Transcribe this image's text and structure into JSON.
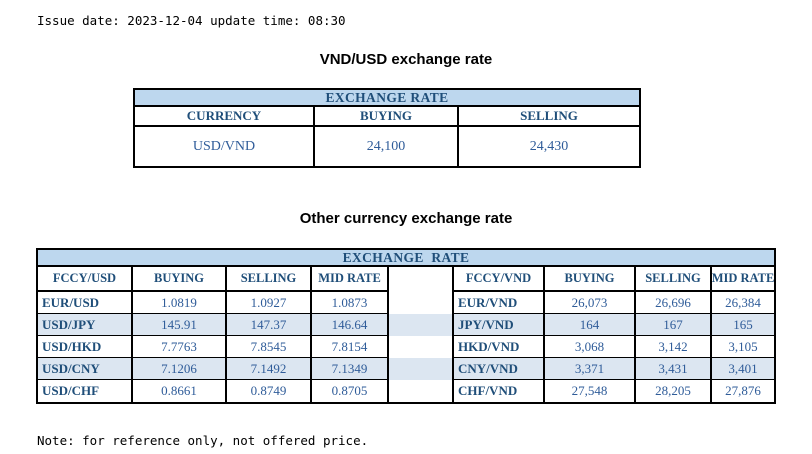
{
  "meta": {
    "issue_line": "Issue date: 2023-12-04 update time: 08:30",
    "note_line": "Note: for reference only, not offered price."
  },
  "colors": {
    "band_bg": "#BDD7EE",
    "stripe_bg": "#DCE6F1",
    "header_text": "#1F4E79",
    "number_text": "#2F5C99",
    "border": "#000000"
  },
  "usd_table": {
    "title": "VND/USD exchange rate",
    "band": "EXCHANGE RATE",
    "headers": [
      "CURRENCY",
      "BUYING",
      "SELLING"
    ],
    "rows": [
      [
        "USD/VND",
        "24,100",
        "24,430"
      ]
    ]
  },
  "other_table": {
    "title": "Other currency exchange rate",
    "band": "EXCHANGE  RATE",
    "left": {
      "headers": [
        "FCCY/USD",
        "BUYING",
        "SELLING",
        "MID RATE"
      ],
      "rows": [
        [
          "EUR/USD",
          "1.0819",
          "1.0927",
          "1.0873"
        ],
        [
          "USD/JPY",
          "145.91",
          "147.37",
          "146.64"
        ],
        [
          "USD/HKD",
          "7.7763",
          "7.8545",
          "7.8154"
        ],
        [
          "USD/CNY",
          "7.1206",
          "7.1492",
          "7.1349"
        ],
        [
          "USD/CHF",
          "0.8661",
          "0.8749",
          "0.8705"
        ]
      ]
    },
    "right": {
      "headers": [
        "FCCY/VND",
        "BUYING",
        "SELLING",
        "MID RATE"
      ],
      "rows": [
        [
          "EUR/VND",
          "26,073",
          "26,696",
          "26,384"
        ],
        [
          "JPY/VND",
          "164",
          "167",
          "165"
        ],
        [
          "HKD/VND",
          "3,068",
          "3,142",
          "3,105"
        ],
        [
          "CNY/VND",
          "3,371",
          "3,431",
          "3,401"
        ],
        [
          "CHF/VND",
          "27,548",
          "28,205",
          "27,876"
        ]
      ]
    }
  }
}
